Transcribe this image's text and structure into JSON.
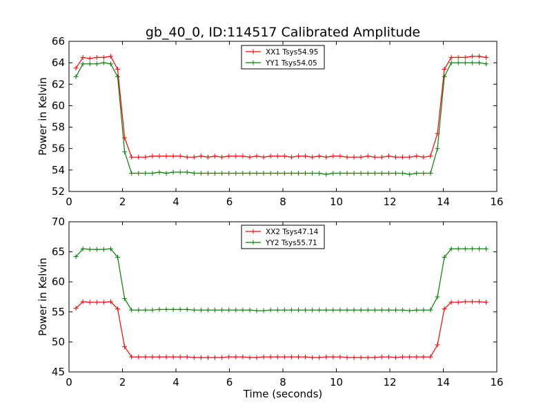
{
  "figure": {
    "title": "gb_40_0, ID:114517 Calibrated Amplitude"
  },
  "chart_data": [
    {
      "type": "line",
      "title": "gb_40_0, ID:114517 Calibrated Amplitude",
      "xlabel": "",
      "ylabel": "Power in Kelvin",
      "xlim": [
        0,
        16
      ],
      "ylim": [
        52,
        66
      ],
      "xticks": [
        0,
        2,
        4,
        6,
        8,
        10,
        12,
        14,
        16
      ],
      "yticks": [
        52,
        54,
        56,
        58,
        60,
        62,
        64,
        66
      ],
      "grid": false,
      "legend_position": "top-center",
      "x": [
        0.26,
        0.52,
        0.78,
        1.04,
        1.3,
        1.56,
        1.82,
        2.08,
        2.34,
        2.6,
        2.86,
        3.12,
        3.38,
        3.64,
        3.9,
        4.16,
        4.42,
        4.68,
        4.94,
        5.2,
        5.46,
        5.72,
        5.98,
        6.24,
        6.5,
        6.76,
        7.02,
        7.28,
        7.54,
        7.8,
        8.06,
        8.32,
        8.58,
        8.84,
        9.1,
        9.36,
        9.62,
        9.88,
        10.14,
        10.4,
        10.66,
        10.92,
        11.18,
        11.44,
        11.7,
        11.96,
        12.22,
        12.48,
        12.74,
        13.0,
        13.26,
        13.52,
        13.78,
        14.04,
        14.3,
        14.56,
        14.82,
        15.08,
        15.34,
        15.6
      ],
      "series": [
        {
          "name": "XX1 Tsys54.95",
          "color": "#ff0000",
          "values": [
            63.5,
            64.5,
            64.4,
            64.5,
            64.5,
            64.6,
            63.4,
            57.0,
            55.2,
            55.2,
            55.2,
            55.3,
            55.3,
            55.3,
            55.3,
            55.3,
            55.2,
            55.2,
            55.3,
            55.2,
            55.3,
            55.2,
            55.3,
            55.3,
            55.3,
            55.2,
            55.3,
            55.2,
            55.3,
            55.3,
            55.3,
            55.2,
            55.3,
            55.3,
            55.2,
            55.3,
            55.2,
            55.3,
            55.3,
            55.2,
            55.2,
            55.2,
            55.3,
            55.2,
            55.2,
            55.3,
            55.2,
            55.2,
            55.2,
            55.3,
            55.2,
            55.3,
            57.4,
            63.4,
            64.5,
            64.5,
            64.5,
            64.6,
            64.6,
            64.5
          ]
        },
        {
          "name": "YY1 Tsys54.05",
          "color": "#008000",
          "values": [
            62.7,
            63.9,
            63.9,
            63.9,
            64.0,
            63.9,
            62.7,
            55.7,
            53.7,
            53.7,
            53.7,
            53.7,
            53.8,
            53.7,
            53.8,
            53.8,
            53.8,
            53.7,
            53.7,
            53.7,
            53.7,
            53.7,
            53.7,
            53.7,
            53.7,
            53.7,
            53.7,
            53.7,
            53.7,
            53.7,
            53.7,
            53.7,
            53.7,
            53.7,
            53.7,
            53.7,
            53.6,
            53.7,
            53.7,
            53.7,
            53.7,
            53.7,
            53.7,
            53.7,
            53.7,
            53.7,
            53.7,
            53.7,
            53.6,
            53.7,
            53.7,
            53.7,
            56.0,
            62.7,
            64.0,
            64.0,
            64.0,
            64.0,
            64.0,
            63.9
          ]
        }
      ]
    },
    {
      "type": "line",
      "title": "",
      "xlabel": "Time (seconds)",
      "ylabel": "Power in Kelvin",
      "xlim": [
        0,
        16
      ],
      "ylim": [
        45,
        70
      ],
      "xticks": [
        0,
        2,
        4,
        6,
        8,
        10,
        12,
        14,
        16
      ],
      "yticks": [
        45,
        50,
        55,
        60,
        65,
        70
      ],
      "grid": false,
      "legend_position": "top-center",
      "x": [
        0.26,
        0.52,
        0.78,
        1.04,
        1.3,
        1.56,
        1.82,
        2.08,
        2.34,
        2.6,
        2.86,
        3.12,
        3.38,
        3.64,
        3.9,
        4.16,
        4.42,
        4.68,
        4.94,
        5.2,
        5.46,
        5.72,
        5.98,
        6.24,
        6.5,
        6.76,
        7.02,
        7.28,
        7.54,
        7.8,
        8.06,
        8.32,
        8.58,
        8.84,
        9.1,
        9.36,
        9.62,
        9.88,
        10.14,
        10.4,
        10.66,
        10.92,
        11.18,
        11.44,
        11.7,
        11.96,
        12.22,
        12.48,
        12.74,
        13.0,
        13.26,
        13.52,
        13.78,
        14.04,
        14.3,
        14.56,
        14.82,
        15.08,
        15.34,
        15.6
      ],
      "series": [
        {
          "name": "XX2 Tsys47.14",
          "color": "#ff0000",
          "values": [
            55.6,
            56.7,
            56.6,
            56.6,
            56.6,
            56.7,
            55.5,
            49.2,
            47.5,
            47.5,
            47.5,
            47.5,
            47.5,
            47.5,
            47.5,
            47.5,
            47.5,
            47.4,
            47.4,
            47.4,
            47.4,
            47.4,
            47.5,
            47.5,
            47.5,
            47.4,
            47.4,
            47.5,
            47.5,
            47.5,
            47.5,
            47.5,
            47.5,
            47.5,
            47.4,
            47.4,
            47.5,
            47.5,
            47.5,
            47.4,
            47.4,
            47.4,
            47.4,
            47.4,
            47.5,
            47.5,
            47.4,
            47.5,
            47.5,
            47.5,
            47.5,
            47.5,
            49.5,
            55.5,
            56.6,
            56.6,
            56.7,
            56.7,
            56.7,
            56.6
          ]
        },
        {
          "name": "YY2 Tsys55.71",
          "color": "#008000",
          "values": [
            64.2,
            65.5,
            65.4,
            65.4,
            65.4,
            65.5,
            64.1,
            57.2,
            55.3,
            55.3,
            55.3,
            55.3,
            55.4,
            55.4,
            55.4,
            55.4,
            55.4,
            55.3,
            55.3,
            55.3,
            55.3,
            55.3,
            55.3,
            55.3,
            55.3,
            55.3,
            55.2,
            55.2,
            55.3,
            55.3,
            55.3,
            55.3,
            55.3,
            55.3,
            55.3,
            55.3,
            55.3,
            55.3,
            55.3,
            55.3,
            55.3,
            55.3,
            55.3,
            55.3,
            55.3,
            55.3,
            55.3,
            55.3,
            55.2,
            55.3,
            55.3,
            55.3,
            57.5,
            64.1,
            65.5,
            65.5,
            65.5,
            65.5,
            65.5,
            65.5
          ]
        }
      ]
    }
  ]
}
